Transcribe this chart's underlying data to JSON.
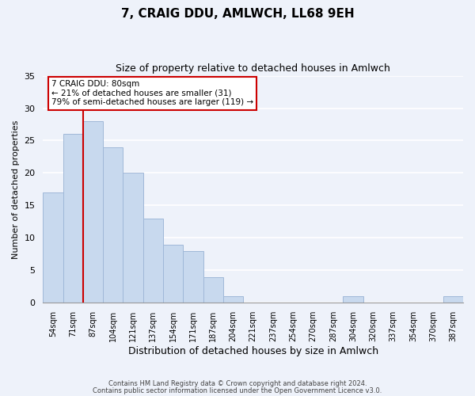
{
  "title": "7, CRAIG DDU, AMLWCH, LL68 9EH",
  "subtitle": "Size of property relative to detached houses in Amlwch",
  "xlabel": "Distribution of detached houses by size in Amlwch",
  "ylabel": "Number of detached properties",
  "bar_labels": [
    "54sqm",
    "71sqm",
    "87sqm",
    "104sqm",
    "121sqm",
    "137sqm",
    "154sqm",
    "171sqm",
    "187sqm",
    "204sqm",
    "221sqm",
    "237sqm",
    "254sqm",
    "270sqm",
    "287sqm",
    "304sqm",
    "320sqm",
    "337sqm",
    "354sqm",
    "370sqm",
    "387sqm"
  ],
  "bar_values": [
    17,
    26,
    28,
    24,
    20,
    13,
    9,
    8,
    4,
    1,
    0,
    0,
    0,
    0,
    0,
    1,
    0,
    0,
    0,
    0,
    1
  ],
  "bar_color": "#c8d9ee",
  "bar_edge_color": "#a0b8d8",
  "ylim": [
    0,
    35
  ],
  "yticks": [
    0,
    5,
    10,
    15,
    20,
    25,
    30,
    35
  ],
  "vline_index": 2,
  "vline_color": "#cc0000",
  "annotation_text": "7 CRAIG DDU: 80sqm\n← 21% of detached houses are smaller (31)\n79% of semi-detached houses are larger (119) →",
  "annotation_box_color": "#ffffff",
  "annotation_box_edge": "#cc0000",
  "footer_line1": "Contains HM Land Registry data © Crown copyright and database right 2024.",
  "footer_line2": "Contains public sector information licensed under the Open Government Licence v3.0.",
  "background_color": "#eef2fa",
  "grid_color": "#ffffff"
}
